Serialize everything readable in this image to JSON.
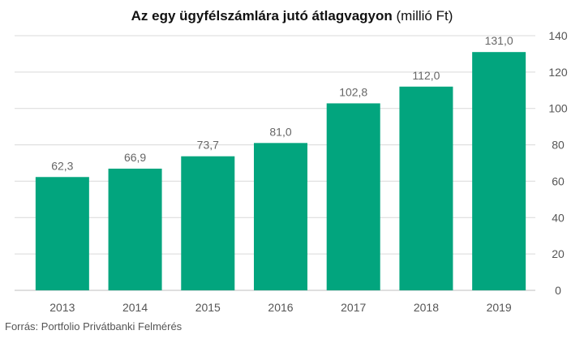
{
  "title": {
    "main": "Az egy ügyfélszámlára jutó átlagvagyon",
    "unit": "(millió Ft)"
  },
  "source": "Forrás:  Portfolio Privátbanki Felmérés",
  "colors": {
    "bar": "#02a57e",
    "grid": "#d9d9d9",
    "tick_text": "#555555",
    "label_text": "#666666"
  },
  "chart_data": {
    "type": "bar",
    "title": "Az egy ügyfélszámlára jutó átlagvagyon (millió Ft)",
    "categories": [
      "2013",
      "2014",
      "2015",
      "2016",
      "2017",
      "2018",
      "2019"
    ],
    "values": [
      62.3,
      66.9,
      73.7,
      81.0,
      102.8,
      112.0,
      131.0
    ],
    "value_labels": [
      "62,3",
      "66,9",
      "73,7",
      "81,0",
      "102,8",
      "112,0",
      "131,0"
    ],
    "ylim": [
      0,
      140
    ],
    "yticks": [
      0,
      20,
      40,
      60,
      80,
      100,
      120,
      140
    ],
    "y_axis_side": "right",
    "grid": true,
    "legend": "none",
    "xlabel": "",
    "ylabel": ""
  }
}
